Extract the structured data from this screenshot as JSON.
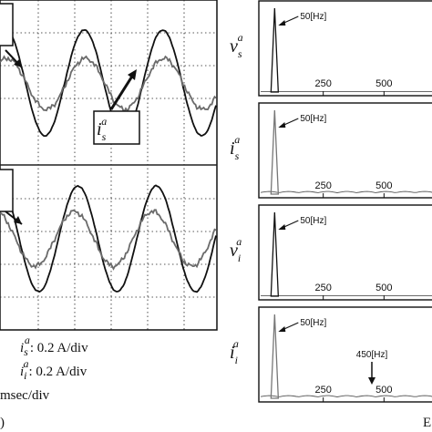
{
  "left": {
    "scale": [
      {
        "sym": "i",
        "sub": "s",
        "sup": "a",
        "text": ": 0.2 A/div"
      },
      {
        "sym": "i",
        "sub": "i",
        "sup": "a",
        "text": ": 0.2 A/div"
      }
    ],
    "time_scale": "msec/div",
    "panel_label_fragment": ")",
    "callout_top": {
      "sym": "i",
      "sub": "s",
      "sup": "a"
    }
  },
  "right": {
    "panel_label_fragment": "E",
    "spectra": [
      {
        "sym": "v",
        "sub": "s",
        "sup": "a",
        "peak_label": "50[Hz]",
        "ticks": [
          "250",
          "500"
        ],
        "peak_freq": 50,
        "harmonics": []
      },
      {
        "sym": "i",
        "sub": "s",
        "sup": "a",
        "peak_label": "50[Hz]",
        "ticks": [
          "250",
          "500"
        ],
        "peak_freq": 50,
        "harmonics": []
      },
      {
        "sym": "v",
        "sub": "i",
        "sup": "a",
        "peak_label": "50[Hz]",
        "ticks": [
          "250",
          "500"
        ],
        "peak_freq": 50,
        "harmonics": []
      },
      {
        "sym": "i",
        "sub": "i",
        "sup": "a",
        "peak_label": "50[Hz]",
        "ticks": [
          "250",
          "500"
        ],
        "peak_freq": 50,
        "harmonics": [
          {
            "freq": 450,
            "label": "450[Hz]"
          }
        ]
      }
    ]
  },
  "colors": {
    "waveform_dark": "#111111",
    "waveform_gray": "#6b6b6b",
    "grid": "#222222"
  }
}
